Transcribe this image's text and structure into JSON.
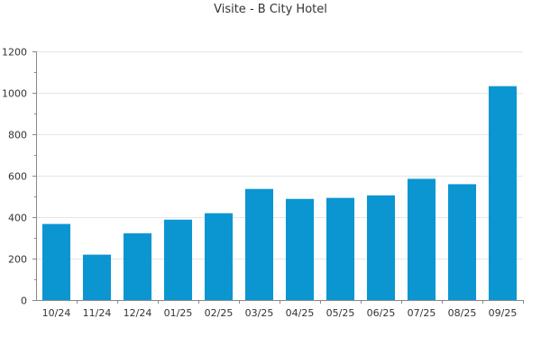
{
  "chart_data": {
    "type": "bar",
    "title": "Visite - B City Hotel",
    "xlabel": "",
    "ylabel": "",
    "categories": [
      "10/24",
      "11/24",
      "12/24",
      "01/25",
      "02/25",
      "03/25",
      "04/25",
      "05/25",
      "06/25",
      "07/25",
      "08/25",
      "09/25"
    ],
    "values": [
      367,
      219,
      322,
      388,
      419,
      536,
      488,
      493,
      505,
      585,
      559,
      1032
    ],
    "ylim": [
      0,
      1200
    ],
    "yticks": [
      0,
      200,
      400,
      600,
      800,
      1000,
      1200
    ],
    "grid": true,
    "legend": "none",
    "colors": {
      "bar": "#0b96d2",
      "grid": "#e6e6e6",
      "axis": "#888888",
      "text": "#333333"
    }
  }
}
